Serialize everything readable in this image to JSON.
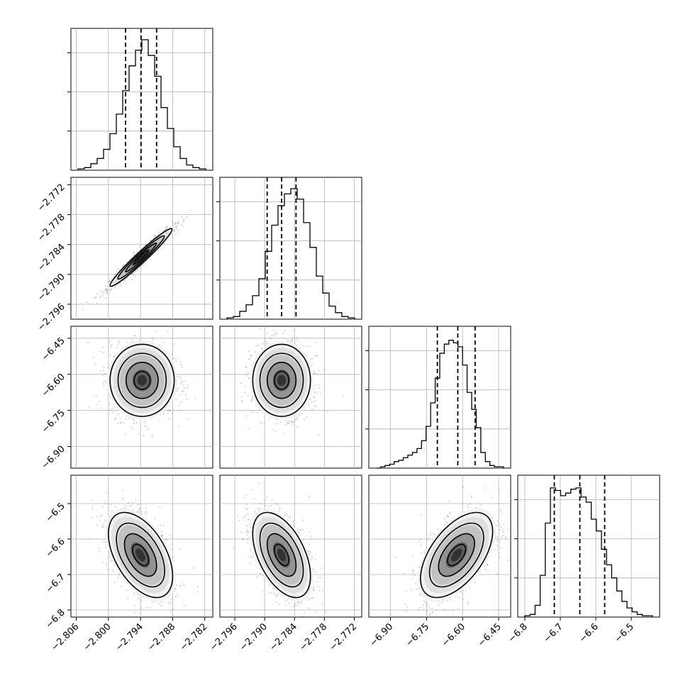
{
  "chart_data": {
    "type": "corner",
    "grid": true,
    "quantiles": [
      0.16,
      0.5,
      0.84
    ],
    "parameters": [
      {
        "index": 0,
        "ticks": [
          "−2.806",
          "−2.800",
          "−2.794",
          "−2.788",
          "−2.782"
        ],
        "tick_values": [
          -2.806,
          -2.8,
          -2.794,
          -2.788,
          -2.782
        ],
        "range": [
          -2.807,
          -2.7805
        ],
        "quantile_values": [
          -2.7968,
          -2.7939,
          -2.791
        ]
      },
      {
        "index": 1,
        "ticks": [
          "−2.796",
          "−2.790",
          "−2.784",
          "−2.778",
          "−2.772"
        ],
        "tick_values": [
          -2.796,
          -2.79,
          -2.784,
          -2.778,
          -2.772
        ],
        "range": [
          -2.799,
          -2.7705
        ],
        "quantile_values": [
          -2.7895,
          -2.7866,
          -2.7837
        ]
      },
      {
        "index": 2,
        "ticks": [
          "−6.90",
          "−6.75",
          "−6.60",
          "−6.45"
        ],
        "tick_values": [
          -6.9,
          -6.75,
          -6.6,
          -6.45
        ],
        "range": [
          -6.99,
          -6.4
        ],
        "quantile_values": [
          -6.705,
          -6.62,
          -6.548
        ]
      },
      {
        "index": 3,
        "ticks": [
          "−6.8",
          "−6.7",
          "−6.6",
          "−6.5"
        ],
        "tick_values": [
          -6.8,
          -6.7,
          -6.6,
          -6.5
        ],
        "range": [
          -6.82,
          -6.42
        ],
        "quantile_values": [
          -6.717,
          -6.645,
          -6.575
        ]
      }
    ],
    "histograms": [
      {
        "param": 0,
        "counts": [
          0.01,
          0.02,
          0.05,
          0.09,
          0.16,
          0.28,
          0.43,
          0.61,
          0.8,
          0.92,
          1.0,
          0.88,
          0.72,
          0.48,
          0.32,
          0.18,
          0.09,
          0.04,
          0.02,
          0.01
        ]
      },
      {
        "param": 1,
        "counts": [
          0.01,
          0.02,
          0.06,
          0.11,
          0.18,
          0.31,
          0.52,
          0.72,
          0.87,
          0.96,
          1.0,
          0.92,
          0.74,
          0.55,
          0.33,
          0.2,
          0.1,
          0.05,
          0.02,
          0.01
        ]
      },
      {
        "param": 2,
        "counts": [
          0.0,
          0.01,
          0.02,
          0.03,
          0.05,
          0.06,
          0.08,
          0.1,
          0.12,
          0.15,
          0.21,
          0.32,
          0.5,
          0.69,
          0.88,
          0.95,
          0.98,
          0.96,
          0.93,
          0.79,
          0.58,
          0.45,
          0.31,
          0.12,
          0.05,
          0.02,
          0.01,
          0.01
        ]
      },
      {
        "param": 3,
        "counts": [
          0.01,
          0.02,
          0.09,
          0.32,
          0.72,
          0.99,
          0.97,
          0.93,
          0.95,
          0.98,
          0.99,
          0.92,
          0.88,
          0.75,
          0.66,
          0.52,
          0.4,
          0.3,
          0.2,
          0.12,
          0.07,
          0.04,
          0.02,
          0.01,
          0.01
        ]
      }
    ],
    "joint": [
      {
        "x_param": 0,
        "y_param": 1,
        "mean": [
          -2.7939,
          -2.7866
        ],
        "sd": [
          0.0029,
          0.0029
        ],
        "rho": 0.97
      },
      {
        "x_param": 0,
        "y_param": 2,
        "mean": [
          -2.7937,
          -6.625
        ],
        "sd": [
          0.003,
          0.075
        ],
        "rho": 0.0
      },
      {
        "x_param": 1,
        "y_param": 2,
        "mean": [
          -2.7866,
          -6.625
        ],
        "sd": [
          0.0029,
          0.075
        ],
        "rho": 0.0
      },
      {
        "x_param": 0,
        "y_param": 3,
        "mean": [
          -2.794,
          -6.645
        ],
        "sd": [
          0.003,
          0.06
        ],
        "rho": -0.5
      },
      {
        "x_param": 1,
        "y_param": 3,
        "mean": [
          -2.7866,
          -6.645
        ],
        "sd": [
          0.0029,
          0.06
        ],
        "rho": -0.5
      },
      {
        "x_param": 2,
        "y_param": 3,
        "mean": [
          -6.625,
          -6.645
        ],
        "sd": [
          0.075,
          0.06
        ],
        "rho": 0.55
      }
    ]
  }
}
